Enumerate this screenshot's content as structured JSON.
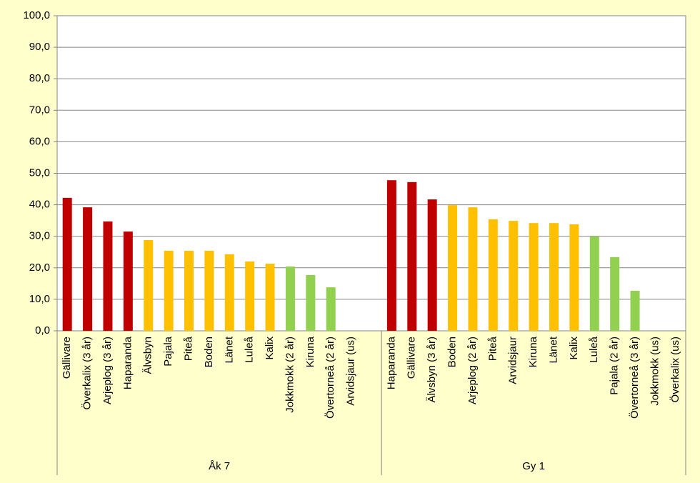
{
  "chart_data": {
    "type": "bar",
    "ylim": [
      0,
      100
    ],
    "yticks": [
      {
        "value": 0,
        "label": "0,0"
      },
      {
        "value": 10,
        "label": "10,0"
      },
      {
        "value": 20,
        "label": "20,0"
      },
      {
        "value": 30,
        "label": "30,0"
      },
      {
        "value": 40,
        "label": "40,0"
      },
      {
        "value": 50,
        "label": "50,0"
      },
      {
        "value": 60,
        "label": "60,0"
      },
      {
        "value": 70,
        "label": "70,0"
      },
      {
        "value": 80,
        "label": "80,0"
      },
      {
        "value": 90,
        "label": "90,0"
      },
      {
        "value": 100,
        "label": "100,0"
      }
    ],
    "grid": true,
    "groups": [
      {
        "name": "Åk 7",
        "categories": [
          "Gällivare",
          "Överkalix (3 år)",
          "Arjeplog (3 år)",
          "Haparanda",
          "Älvsbyn",
          "Pajala",
          "Piteå",
          "Boden",
          "Länet",
          "Luleå",
          "Kalix",
          "Jokkmokk (2 år)",
          "Kiruna",
          "Övertorneå (2 år)",
          "Arvidsjaur (us)",
          null
        ],
        "values": [
          42.2,
          39.2,
          34.7,
          31.5,
          28.8,
          25.4,
          25.4,
          25.4,
          24.3,
          22.0,
          21.3,
          20.4,
          17.7,
          13.8,
          null,
          null
        ],
        "colors": [
          "#c00000",
          "#c00000",
          "#c00000",
          "#c00000",
          "#ffc000",
          "#ffc000",
          "#ffc000",
          "#ffc000",
          "#ffc000",
          "#ffc000",
          "#ffc000",
          "#92d050",
          "#92d050",
          "#92d050",
          null,
          null
        ]
      },
      {
        "name": "Gy 1",
        "categories": [
          "Haparanda",
          "Gällivare",
          "Älvsbyn (3 år)",
          "Boden",
          "Arjeplog (2 år)",
          "Piteå",
          "Arvidsjaur",
          "Kiruna",
          "Länet",
          "Kalix",
          "Luleå",
          "Pajala (2 år)",
          "Övertorneå (3 år)",
          "Jokkmokk (us)",
          "Överkalix (us)"
        ],
        "values": [
          47.8,
          47.2,
          41.7,
          39.9,
          39.2,
          35.4,
          34.9,
          34.2,
          34.2,
          33.8,
          29.9,
          23.4,
          12.7,
          null,
          null
        ],
        "colors": [
          "#c00000",
          "#c00000",
          "#c00000",
          "#ffc000",
          "#ffc000",
          "#ffc000",
          "#ffc000",
          "#ffc000",
          "#ffc000",
          "#ffc000",
          "#92d050",
          "#92d050",
          "#92d050",
          null,
          null
        ]
      }
    ]
  }
}
